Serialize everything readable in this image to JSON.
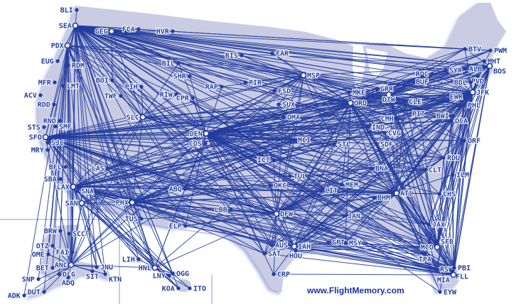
{
  "map": {
    "colors": {
      "land": "#c9cce3",
      "coast_shadow": "#aab2e0",
      "route": "#233d9f",
      "label": "#233d9f",
      "inset_border": "#c9cce3"
    },
    "credit": "www.FlightMemory.com",
    "airports": [
      "BLI",
      "SEA",
      "GEG",
      "FCA",
      "HVR",
      "PDX",
      "EUG",
      "RDM",
      "MFR",
      "LMT",
      "ACV",
      "RDD",
      "STS",
      "SMF",
      "RNO",
      "SFO",
      "SJC",
      "MRY",
      "BOI",
      "TWF",
      "PIH",
      "RIW",
      "CPR",
      "SHR",
      "BIL",
      "RAP",
      "PIR",
      "BIS",
      "FAR",
      "SLC",
      "DEN",
      "COS",
      "ABQ",
      "ELP",
      "LAS",
      "BFL",
      "SBA",
      "LAX",
      "SNA",
      "SAN",
      "PHX",
      "TUS",
      "LBB",
      "OKC",
      "ICT",
      "MCI",
      "OMA",
      "SUX",
      "FSD",
      "MSP",
      "ORD",
      "MKE",
      "GRR",
      "DTW",
      "CLE",
      "PIT",
      "CMH",
      "IND",
      "CVG",
      "SDF",
      "STL",
      "BNA",
      "MEM",
      "LIT",
      "DFW",
      "AUS",
      "SAT",
      "IAH",
      "HOU",
      "CRP",
      "MSY",
      "GPT",
      "JAN",
      "BHM",
      "ATL",
      "CLT",
      "RDU",
      "ORF",
      "DCA",
      "BWI",
      "PHL",
      "JFK",
      "EWR",
      "ALB",
      "SYR",
      "ROC",
      "BUF",
      "BTV",
      "PWM",
      "MHT",
      "BOS",
      "PVD",
      "CHS",
      "JAX",
      "SFB",
      "MCO",
      "TPA",
      "RSW",
      "PBI",
      "FLL",
      "MIA",
      "EYW",
      "ILM",
      "BRW",
      "SCC",
      "OTZ",
      "OME",
      "FAI",
      "ANC",
      "BET",
      "DLG",
      "ADQ",
      "SNP",
      "DUT",
      "ADK",
      "JNU",
      "SIT",
      "KTN",
      "LIH",
      "HNL",
      "OGG",
      "LNY",
      "KOA",
      "ITO"
    ],
    "routes": [
      {
        "from": "SEA",
        "to": [
          "BLI",
          "GEG",
          "FCA",
          "PDX",
          "EUG",
          "RDM",
          "BOI",
          "SLC",
          "DEN",
          "SFO",
          "SJC",
          "LAX",
          "SAN",
          "LAS",
          "PHX",
          "TUS",
          "ABQ",
          "ANC",
          "FAI",
          "JNU",
          "KTN",
          "SIT",
          "HNL",
          "OGG",
          "KOA",
          "LIH",
          "MSP",
          "ORD",
          "DTW",
          "ATL",
          "DFW",
          "IAH",
          "JFK",
          "EWR",
          "BOS",
          "PHL",
          "DCA",
          "BWI",
          "MCO",
          "MIA",
          "CLT",
          "STL",
          "MCI",
          "OMA",
          "FAR",
          "BIL",
          "RAP",
          "SHR",
          "PWM",
          "BTV",
          "PVD",
          "RDU",
          "TPA",
          "FLL",
          "MSY",
          "BNA",
          "MEM",
          "CVG",
          "PIT",
          "CLE",
          "IND",
          "CMH",
          "FSD",
          "ELP",
          "LBB",
          "OKC",
          "AUS",
          "SAT",
          "HOU",
          "BDL",
          "ALB",
          "SYR"
        ]
      },
      {
        "from": "PDX",
        "to": [
          "SFO",
          "LAX",
          "DEN",
          "SLC",
          "ANC",
          "ORD",
          "ATL",
          "DFW",
          "JFK",
          "BOS",
          "MSP",
          "PHX",
          "LAS",
          "SAN",
          "HNL",
          "OGG",
          "FAI",
          "BRW",
          "OTZ",
          "OME",
          "BET",
          "DLG",
          "ADQ",
          "ADK",
          "DUT",
          "SNP"
        ]
      },
      {
        "from": "SFO",
        "to": [
          "LAX",
          "SAN",
          "LAS",
          "PHX",
          "DEN",
          "SLC",
          "ORD",
          "DFW",
          "IAH",
          "ATL",
          "JFK",
          "EWR",
          "BOS",
          "PHL",
          "DCA",
          "MSP",
          "STL",
          "MCI",
          "MIA",
          "MCO",
          "HNL",
          "OGG",
          "KOA",
          "LIH",
          "ANC",
          "ABQ",
          "ELP",
          "TUS",
          "OMA",
          "BNA",
          "CLT",
          "MSY",
          "AUS",
          "SAT",
          "PIT",
          "CLE",
          "DTW",
          "CVG",
          "IND",
          "RDU",
          "ORF",
          "JAX",
          "TPA",
          "PBI",
          "FLL",
          "RSW"
        ]
      },
      {
        "from": "LAX",
        "to": [
          "SAN",
          "LAS",
          "PHX",
          "DEN",
          "SLC",
          "ORD",
          "DFW",
          "IAH",
          "ATL",
          "JFK",
          "EWR",
          "BOS",
          "PHL",
          "DCA",
          "MSP",
          "STL",
          "MCI",
          "MIA",
          "MCO",
          "HNL",
          "OGG",
          "KOA",
          "LIH",
          "ITO",
          "ANC",
          "JNU",
          "KTN",
          "ABQ",
          "ELP",
          "TUS",
          "OKC",
          "BNA",
          "CLT",
          "MSY",
          "AUS",
          "HOU",
          "DTW",
          "CVG",
          "IND",
          "TPA",
          "FLL",
          "PBI",
          "RSW",
          "JAX",
          "CHS",
          "MEM",
          "LIT"
        ]
      },
      {
        "from": "SAN",
        "to": [
          "ANC",
          "FAI",
          "JNU",
          "KTN",
          "HNL",
          "OGG",
          "KOA",
          "LNY",
          "DEN",
          "ORD",
          "DFW",
          "ATL",
          "JFK"
        ]
      },
      {
        "from": "DEN",
        "to": [
          "SLC",
          "ABQ",
          "ELP",
          "PHX",
          "LAS",
          "BOI",
          "BIL",
          "RAP",
          "SHR",
          "CPR",
          "RIW",
          "FSD",
          "OMA",
          "MCI",
          "ICT",
          "OKC",
          "DFW",
          "IAH",
          "AUS",
          "ORD",
          "MSP",
          "STL",
          "ATL",
          "JFK",
          "EWR",
          "BOS",
          "PHL",
          "DCA",
          "BWI",
          "MIA",
          "MCO",
          "TPA",
          "CLT",
          "RDU",
          "ORF",
          "CLE",
          "PIT",
          "DTW",
          "IND",
          "CVG",
          "CMH",
          "BNA",
          "MEM",
          "MSY",
          "LIT",
          "HNL",
          "ANC",
          "PVD",
          "MHT",
          "PWM",
          "BTV",
          "ALB",
          "SYR",
          "BUF",
          "ROC",
          "JAX",
          "CHS",
          "FLL",
          "PBI",
          "RSW",
          "EYW",
          "SFB",
          "GRR",
          "MKE",
          "SDF",
          "JAN",
          "BHM",
          "GPT",
          "CRP",
          "SAT",
          "HOU"
        ]
      },
      {
        "from": "ORD",
        "to": [
          "MSP",
          "MKE",
          "DTW",
          "CLE",
          "PIT",
          "CMH",
          "IND",
          "CVG",
          "STL",
          "MCI",
          "OMA",
          "DFW",
          "IAH",
          "ATL",
          "JFK",
          "EWR",
          "BOS",
          "PHL",
          "DCA",
          "BWI",
          "MIA",
          "MCO",
          "TPA",
          "FLL",
          "PBI",
          "RSW",
          "CLT",
          "RDU",
          "BNA",
          "MEM",
          "MSY",
          "AUS",
          "SAT",
          "PHX",
          "LAS",
          "SLC",
          "ABQ",
          "BUF",
          "ROC",
          "SYR",
          "ALB",
          "PVD",
          "PWM",
          "MHT",
          "BTV",
          "ORF",
          "CHS",
          "JAX",
          "FAR",
          "FSD",
          "SUX",
          "BIS",
          "PIR",
          "RAP",
          "BIL"
        ]
      },
      {
        "from": "ATL",
        "to": [
          "CLT",
          "RDU",
          "BNA",
          "MEM",
          "BHM",
          "JAN",
          "MSY",
          "GPT",
          "LIT",
          "DFW",
          "IAH",
          "HOU",
          "AUS",
          "SAT",
          "MCO",
          "TPA",
          "MIA",
          "FLL",
          "PBI",
          "RSW",
          "JAX",
          "CHS",
          "SFB",
          "EYW",
          "DCA",
          "BWI",
          "PHL",
          "JFK",
          "EWR",
          "BOS",
          "PVD",
          "ORF",
          "PIT",
          "CLE",
          "DTW",
          "CMH",
          "IND",
          "CVG",
          "SDF",
          "STL",
          "MCI",
          "MSP",
          "PHX",
          "LAS",
          "SLC",
          "ELP",
          "ABQ",
          "OKC",
          "TUL",
          "ILM"
        ]
      },
      {
        "from": "DFW",
        "to": [
          "IAH",
          "HOU",
          "AUS",
          "SAT",
          "CRP",
          "OKC",
          "LBB",
          "ELP",
          "ABQ",
          "PHX",
          "LAS",
          "TUS",
          "MSY",
          "MEM",
          "LIT",
          "JAN",
          "BNA",
          "STL",
          "MCI",
          "ICT",
          "OMA",
          "MSP",
          "DTW",
          "CLE",
          "PIT",
          "JFK",
          "EWR",
          "BOS",
          "PHL",
          "DCA",
          "BWI",
          "MIA",
          "MCO",
          "TPA",
          "FLL",
          "CLT",
          "RDU",
          "ORF"
        ]
      },
      {
        "from": "JFK",
        "to": [
          "BOS",
          "PVD",
          "PWM",
          "MHT",
          "BTV",
          "ALB",
          "SYR",
          "ROC",
          "BUF",
          "PIT",
          "CLE",
          "DTW",
          "CMH",
          "CVG",
          "IND",
          "RDU",
          "CLT",
          "CHS",
          "JAX",
          "MCO",
          "TPA",
          "RSW",
          "PBI",
          "FLL",
          "MIA",
          "EYW",
          "SFB",
          "MSY",
          "IAH",
          "HOU",
          "AUS",
          "SAT",
          "PHX",
          "LAS",
          "MSP",
          "STL",
          "MCI"
        ]
      },
      {
        "from": "BOS",
        "to": [
          "PHL",
          "DCA",
          "BWI",
          "ORF",
          "RDU",
          "CLT",
          "MCO",
          "TPA",
          "FLL",
          "PBI",
          "MIA",
          "RSW",
          "JAX",
          "CHS",
          "PIT",
          "CLE",
          "DTW",
          "BUF",
          "ROC",
          "SYR",
          "BTV"
        ]
      },
      {
        "from": "MIA",
        "to": [
          "TPA",
          "MCO",
          "JAX",
          "CHS",
          "CLT",
          "RDU",
          "DCA",
          "BWI",
          "PHL",
          "EWR",
          "IAH",
          "HOU",
          "MSY",
          "GPT",
          "ELP",
          "SAT",
          "CRP",
          "AUS"
        ]
      },
      {
        "from": "MCO",
        "to": [
          "IAH",
          "HOU",
          "MSY",
          "GPT",
          "JAN",
          "BHM",
          "MEM",
          "BNA",
          "SDF",
          "CVG",
          "IND",
          "CMH",
          "PIT",
          "CLE",
          "DTW",
          "PHL",
          "DCA",
          "BWI",
          "EWR",
          "ORF",
          "RDU",
          "CLT"
        ]
      },
      {
        "from": "ANC",
        "to": [
          "FAI",
          "BRW",
          "SCC",
          "OTZ",
          "OME",
          "BET",
          "DLG",
          "ADQ",
          "SNP",
          "DUT",
          "ADK",
          "JNU",
          "SIT",
          "KTN",
          "HNL",
          "ORD",
          "MSP",
          "SLC",
          "LAS",
          "PHX"
        ]
      },
      {
        "from": "HNL",
        "to": [
          "LIH",
          "OGG",
          "LNY",
          "KOA",
          "ITO",
          "PHX",
          "LAS",
          "DEN",
          "DFW",
          "ORD"
        ]
      },
      {
        "from": "SLC",
        "to": [
          "BOI",
          "TWF",
          "PIH",
          "RIW",
          "BIL",
          "GEG",
          "LAS",
          "PHX",
          "ABQ",
          "MSP",
          "ORD",
          "ATL",
          "DFW",
          "JFK",
          "CVG",
          "MCI",
          "STL",
          "OMA"
        ]
      },
      {
        "from": "MSP",
        "to": [
          "FAR",
          "FSD",
          "SUX",
          "BIS",
          "PIR",
          "RAP",
          "OMA",
          "MCI",
          "STL",
          "DTW",
          "CLE",
          "PIT",
          "MKE",
          "GRR",
          "BOS",
          "JFK",
          "DCA",
          "PHL",
          "PHX",
          "LAS",
          "BIL"
        ]
      },
      {
        "from": "PHX",
        "to": [
          "TUS",
          "ABQ",
          "ELP",
          "LAS",
          "DFW",
          "IAH",
          "AUS",
          "SAT",
          "OKC",
          "LBB",
          "MCI",
          "STL",
          "DTW",
          "PHL",
          "JFK",
          "BOS",
          "CLT",
          "RDU"
        ]
      },
      {
        "from": "DTW",
        "to": [
          "CLE",
          "PIT",
          "CMH",
          "BUF",
          "ROC",
          "SYR",
          "ALB",
          "PWM",
          "BTV",
          "MHT",
          "PVD",
          "EWR",
          "PHL",
          "DCA",
          "BWI",
          "ORF",
          "RDU",
          "CLT",
          "TPA",
          "FLL",
          "RSW",
          "PBI"
        ]
      },
      {
        "from": "IAH",
        "to": [
          "HOU",
          "AUS",
          "SAT",
          "CRP",
          "MSY",
          "GPT",
          "LIT",
          "MEM",
          "BNA",
          "OKC",
          "ELP",
          "TPA",
          "FLL",
          "RSW",
          "PBI",
          "EWR",
          "PHL",
          "DCA",
          "CLT",
          "RDU"
        ]
      },
      {
        "from": "GEG",
        "to": [
          "BIL",
          "BOI",
          "FCA",
          "HVR",
          "FAR",
          "MSP",
          "RAP",
          "PWM",
          "BOS",
          "PVD",
          "JFK",
          "ORD"
        ]
      }
    ]
  }
}
